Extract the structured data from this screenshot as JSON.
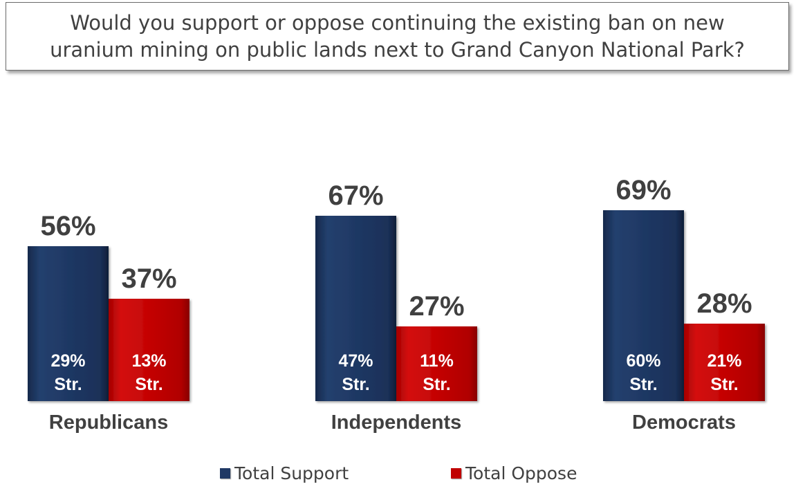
{
  "title": "Would you support or oppose continuing the existing ban on new uranium mining on public lands next to Grand Canyon National Park?",
  "colors": {
    "support": "#1f3864",
    "oppose": "#c00000",
    "text": "#404040",
    "inner_text": "#ffffff"
  },
  "chart_data": {
    "type": "bar",
    "categories": [
      "Republicans",
      "Independents",
      "Democrats"
    ],
    "series": [
      {
        "name": "Total Support",
        "values": [
          56,
          67,
          69
        ],
        "value_labels": [
          "56%",
          "67%",
          "69%"
        ],
        "strong_values": [
          29,
          47,
          60
        ],
        "strong_labels": [
          "29%",
          "47%",
          "60%"
        ]
      },
      {
        "name": "Total Oppose",
        "values": [
          37,
          27,
          28
        ],
        "value_labels": [
          "37%",
          "27%",
          "28%"
        ],
        "strong_values": [
          13,
          11,
          21
        ],
        "strong_labels": [
          "13%",
          "11%",
          "21%"
        ]
      }
    ],
    "strong_suffix": "Str.",
    "ylim": [
      0,
      100
    ],
    "grid": false,
    "legend_position": "bottom"
  }
}
